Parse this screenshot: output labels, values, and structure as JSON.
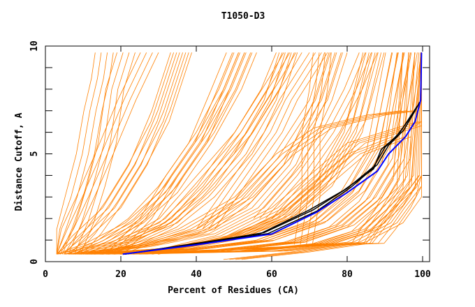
{
  "chart_data": {
    "type": "line",
    "title": "T1050-D3",
    "xlabel": "Percent of Residues (CA)",
    "ylabel": "Distance Cutoff, A",
    "xlim": [
      0,
      100
    ],
    "ylim": [
      0,
      10
    ],
    "xticks": [
      "0",
      "20",
      "40",
      "60",
      "80",
      "100"
    ],
    "yticks": [
      "0",
      "5",
      "10"
    ],
    "grid": false,
    "colors": {
      "models": "#ff8000",
      "highlight_black": "#000000",
      "highlight_blue": "#0000ff"
    },
    "series_orange": [
      [
        [
          4,
          0.35
        ],
        [
          7,
          1.5
        ],
        [
          10,
          3
        ],
        [
          13,
          5
        ],
        [
          15,
          7
        ],
        [
          17,
          8.5
        ],
        [
          18,
          9.7
        ]
      ],
      [
        [
          4.5,
          0.35
        ],
        [
          8,
          1.8
        ],
        [
          11,
          3.5
        ],
        [
          14,
          5.5
        ],
        [
          16,
          8
        ],
        [
          19,
          9.7
        ]
      ],
      [
        [
          5,
          0.35
        ],
        [
          9,
          1.5
        ],
        [
          13,
          3
        ],
        [
          18,
          5
        ],
        [
          24,
          7.5
        ],
        [
          30,
          9.7
        ]
      ],
      [
        [
          5,
          0.35
        ],
        [
          10,
          1.3
        ],
        [
          16,
          2.8
        ],
        [
          22,
          4.5
        ],
        [
          28,
          6.5
        ],
        [
          34,
          9.7
        ]
      ],
      [
        [
          6,
          0.35
        ],
        [
          12,
          1.2
        ],
        [
          20,
          2.5
        ],
        [
          27,
          4.5
        ],
        [
          33,
          7
        ],
        [
          38,
          9.7
        ]
      ],
      [
        [
          6,
          0.35
        ],
        [
          14,
          1
        ],
        [
          22,
          2
        ],
        [
          30,
          3.5
        ],
        [
          38,
          5.5
        ],
        [
          44,
          8
        ],
        [
          48,
          9.7
        ]
      ],
      [
        [
          7,
          0.35
        ],
        [
          16,
          0.9
        ],
        [
          26,
          1.8
        ],
        [
          35,
          3.2
        ],
        [
          44,
          5.5
        ],
        [
          52,
          8
        ],
        [
          56,
          9.7
        ]
      ],
      [
        [
          8,
          0.35
        ],
        [
          20,
          0.8
        ],
        [
          30,
          1.6
        ],
        [
          40,
          3
        ],
        [
          50,
          5
        ],
        [
          58,
          7.5
        ],
        [
          62,
          9.7
        ]
      ],
      [
        [
          8,
          0.35
        ],
        [
          22,
          0.9
        ],
        [
          35,
          1.8
        ],
        [
          45,
          3.5
        ],
        [
          55,
          6
        ],
        [
          64,
          8.5
        ],
        [
          68,
          9.7
        ]
      ],
      [
        [
          9,
          0.35
        ],
        [
          25,
          0.8
        ],
        [
          40,
          1.5
        ],
        [
          50,
          2.8
        ],
        [
          60,
          4.8
        ],
        [
          70,
          7.5
        ],
        [
          74,
          9.7
        ]
      ],
      [
        [
          10,
          0.35
        ],
        [
          28,
          0.7
        ],
        [
          45,
          1.3
        ],
        [
          58,
          2.5
        ],
        [
          68,
          4.5
        ],
        [
          76,
          7.5
        ],
        [
          80,
          9.7
        ]
      ],
      [
        [
          10,
          0.35
        ],
        [
          30,
          0.6
        ],
        [
          48,
          1.1
        ],
        [
          62,
          2.2
        ],
        [
          72,
          4
        ],
        [
          80,
          6.5
        ],
        [
          85,
          9.7
        ]
      ],
      [
        [
          11,
          0.35
        ],
        [
          35,
          0.6
        ],
        [
          52,
          1.1
        ],
        [
          66,
          2
        ],
        [
          76,
          3.5
        ],
        [
          84,
          6
        ],
        [
          89,
          9.7
        ]
      ],
      [
        [
          12,
          0.35
        ],
        [
          38,
          0.6
        ],
        [
          56,
          1
        ],
        [
          70,
          1.9
        ],
        [
          80,
          3.3
        ],
        [
          87,
          5.5
        ],
        [
          92,
          9.7
        ]
      ],
      [
        [
          12,
          0.35
        ],
        [
          40,
          0.55
        ],
        [
          60,
          0.95
        ],
        [
          74,
          1.8
        ],
        [
          83,
          3.2
        ],
        [
          90,
          5.2
        ],
        [
          95,
          9.7
        ]
      ],
      [
        [
          13,
          0.35
        ],
        [
          45,
          0.55
        ],
        [
          64,
          0.9
        ],
        [
          77,
          1.7
        ],
        [
          86,
          3
        ],
        [
          92,
          4.8
        ],
        [
          97,
          9.7
        ]
      ],
      [
        [
          14,
          0.35
        ],
        [
          48,
          0.5
        ],
        [
          68,
          0.9
        ],
        [
          80,
          1.6
        ],
        [
          88,
          2.8
        ],
        [
          94,
          4.5
        ],
        [
          98,
          9.7
        ]
      ],
      [
        [
          15,
          0.35
        ],
        [
          52,
          0.5
        ],
        [
          72,
          0.85
        ],
        [
          83,
          1.5
        ],
        [
          90,
          2.6
        ],
        [
          96,
          4
        ],
        [
          99,
          9.7
        ]
      ],
      [
        [
          16,
          0.35
        ],
        [
          55,
          0.5
        ],
        [
          75,
          0.8
        ],
        [
          86,
          1.4
        ],
        [
          92,
          2.4
        ],
        [
          97,
          3.8
        ],
        [
          99.5,
          9.7
        ]
      ],
      [
        [
          15,
          0.35
        ],
        [
          45,
          0.55
        ],
        [
          70,
          0.75
        ],
        [
          85,
          0.85
        ],
        [
          88,
          1.5
        ],
        [
          92,
          2.5
        ],
        [
          97,
          3.5
        ],
        [
          99.5,
          9.7
        ]
      ],
      [
        [
          52,
          0.1
        ],
        [
          70,
          0.45
        ],
        [
          86,
          0.85
        ],
        [
          88,
          1.4
        ],
        [
          93,
          2.6
        ],
        [
          98,
          3.4
        ],
        [
          99.5,
          9.7
        ]
      ],
      [
        [
          20,
          0.35
        ],
        [
          60,
          0.5
        ],
        [
          80,
          0.9
        ],
        [
          90,
          1.8
        ],
        [
          95,
          3
        ],
        [
          99,
          4
        ]
      ],
      [
        [
          18,
          0.35
        ],
        [
          35,
          2
        ],
        [
          45,
          4
        ],
        [
          55,
          6
        ],
        [
          62,
          8
        ],
        [
          66,
          9.7
        ]
      ],
      [
        [
          16,
          0.35
        ],
        [
          25,
          2
        ],
        [
          32,
          4
        ],
        [
          40,
          6
        ],
        [
          46,
          8
        ],
        [
          50,
          9.7
        ]
      ],
      [
        [
          20,
          0.35
        ],
        [
          40,
          1.5
        ],
        [
          55,
          3
        ],
        [
          66,
          5
        ],
        [
          76,
          6.2
        ],
        [
          90,
          6.8
        ],
        [
          99,
          7
        ]
      ],
      [
        [
          25,
          0.35
        ],
        [
          45,
          1.2
        ],
        [
          60,
          2.5
        ],
        [
          70,
          4
        ],
        [
          80,
          5.5
        ],
        [
          95,
          6.3
        ],
        [
          99,
          6.5
        ]
      ],
      [
        [
          30,
          0.35
        ],
        [
          50,
          1
        ],
        [
          65,
          2
        ],
        [
          75,
          3.5
        ],
        [
          85,
          5
        ],
        [
          97,
          5.8
        ]
      ],
      [
        [
          66,
          0.8
        ],
        [
          68,
          3
        ],
        [
          68,
          6
        ],
        [
          69,
          7
        ],
        [
          70,
          8
        ],
        [
          71,
          9.7
        ]
      ],
      [
        [
          60,
          2
        ],
        [
          70,
          4
        ],
        [
          78,
          6
        ],
        [
          84,
          8
        ],
        [
          88,
          9.7
        ]
      ],
      [
        [
          40,
          1.5
        ],
        [
          50,
          4
        ],
        [
          58,
          6
        ],
        [
          62,
          7.5
        ],
        [
          70,
          9.7
        ]
      ]
    ],
    "series_black": [
      [
        [
          21,
          0.35
        ],
        [
          40,
          0.85
        ],
        [
          57,
          1.3
        ],
        [
          70,
          2.4
        ],
        [
          79,
          3.3
        ],
        [
          87,
          4.3
        ],
        [
          89,
          5.2
        ],
        [
          93,
          5.8
        ],
        [
          96,
          6.5
        ],
        [
          98.5,
          7.2
        ]
      ],
      [
        [
          21,
          0.35
        ],
        [
          40,
          0.8
        ],
        [
          58,
          1.35
        ],
        [
          71,
          2.4
        ],
        [
          80,
          3.4
        ],
        [
          87,
          4.4
        ],
        [
          90,
          5.3
        ],
        [
          94,
          6
        ],
        [
          97,
          6.8
        ],
        [
          99,
          7.3
        ]
      ],
      [
        [
          21,
          0.35
        ],
        [
          40,
          0.82
        ],
        [
          59,
          1.3
        ],
        [
          72,
          2.35
        ],
        [
          81,
          3.45
        ],
        [
          88,
          4.5
        ],
        [
          91,
          5.4
        ],
        [
          95,
          6.1
        ],
        [
          98,
          7
        ],
        [
          99.2,
          7.4
        ]
      ]
    ],
    "series_blue": [
      [
        20.5,
        0.35
      ],
      [
        40,
        0.78
      ],
      [
        60,
        1.28
      ],
      [
        72,
        2.3
      ],
      [
        80,
        3.2
      ],
      [
        88,
        4.2
      ],
      [
        91,
        5.0
      ],
      [
        95.5,
        5.8
      ],
      [
        98,
        6.5
      ],
      [
        99.5,
        7.5
      ],
      [
        99.7,
        9.7
      ]
    ]
  }
}
